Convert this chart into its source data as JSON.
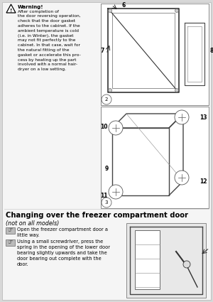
{
  "page_bg": "#d8d8d8",
  "content_bg": "#f5f5f5",
  "white": "#ffffff",
  "title": "Changing over the freezer compartment door",
  "subtitle": "(not on all models)",
  "warning_title": "Warning!",
  "warning_text": "After completion of\nthe door reversing operation,\ncheck that the door gasket\nadheres to the cabinet. If the\nambient temperature is cold\n(i.e. in Winter), the gasket\nmay not fit perfectly to the\ncabinet. In that case, wait for\nthe natural fitting of the\ngasket or accelerate this pro-\ncess by heating up the part\ninvolved with a normal hair-\ndryer on a low setting.",
  "step1_text": "Open the freezer compartment door a\nlittle way.",
  "step2_text": "Using a small screwdriver, press the\nspring in the opening of the lower door\nbearing slightly upwards and take the\ndoor bearing out complete with the\ndoor.",
  "diagram1_label": "2",
  "diagram2_label": "3",
  "num6": "6",
  "num7": "7",
  "num8": "8",
  "num9": "9",
  "num10": "10",
  "num11": "11",
  "num12": "12",
  "num13": "13",
  "border_color": "#aaaaaa",
  "text_color": "#000000",
  "diag_bg": "#ebebeb",
  "diag_border": "#888888"
}
